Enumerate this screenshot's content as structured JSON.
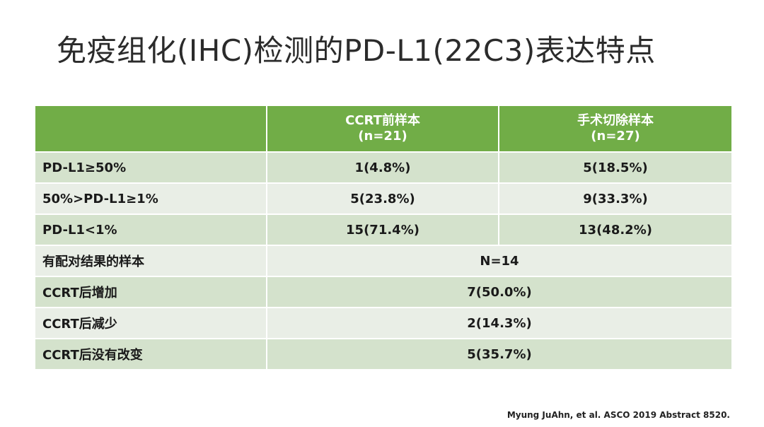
{
  "slide": {
    "title": "免疫组化(IHC)检测的PD-L1(22C3)表达特点",
    "citation": "Myung JuAhn, et al.  ASCO 2019 Abstract 8520."
  },
  "table": {
    "header": {
      "col1": "",
      "col2_line1": "CCRT前样本",
      "col2_line2": "(n=21)",
      "col3_line1": "手术切除样本",
      "col3_line2": "(n=27)"
    },
    "rows": [
      {
        "label": "PD-L1≥50%",
        "ccrt": "1(4.8%)",
        "surgery": "5(18.5%)"
      },
      {
        "label": "50%>PD-L1≥1%",
        "ccrt": "5(23.8%)",
        "surgery": "9(33.3%)"
      },
      {
        "label": "PD-L1<1%",
        "ccrt": "15(71.4%)",
        "surgery": "13(48.2%)"
      },
      {
        "label": "有配对结果的样本",
        "value": "N=14"
      },
      {
        "label": "CCRT后增加",
        "value": "7(50.0%)"
      },
      {
        "label": "CCRT后减少",
        "value": "2(14.3%)"
      },
      {
        "label": "CCRT后没有改变",
        "value": "5(35.7%)"
      }
    ]
  },
  "colors": {
    "header_bg": "#71ad47",
    "row_light": "#e9eee6",
    "row_dark": "#d4e2cc"
  }
}
